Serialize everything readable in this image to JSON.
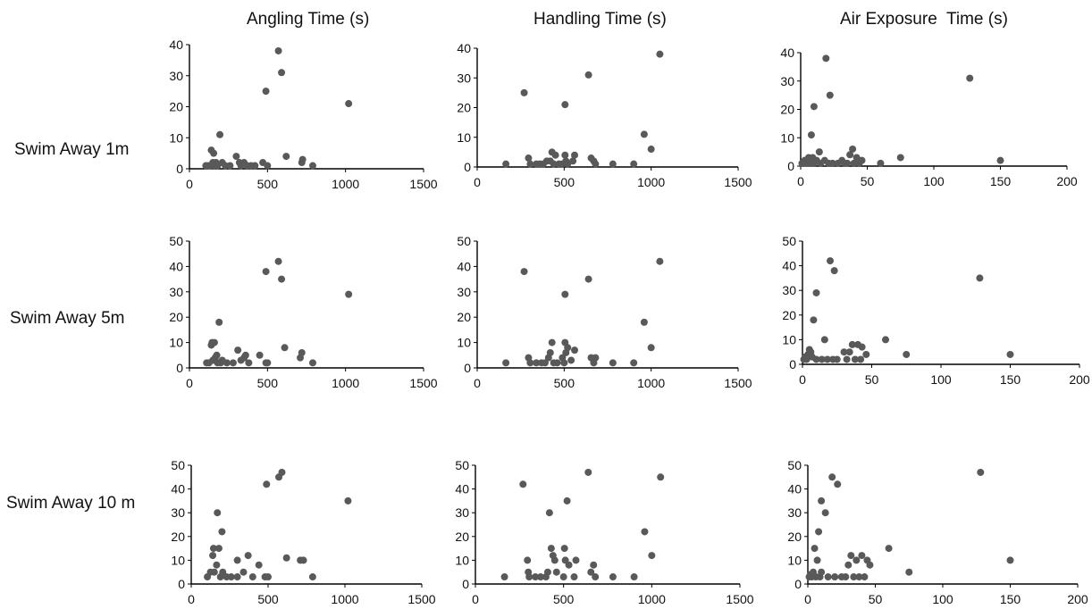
{
  "column_titles": [
    "Angling Time (s)",
    "Handling Time (s)",
    "Air Exposure  Time (s)"
  ],
  "row_labels": [
    "Swim Away 1m",
    "Swim Away 5m",
    "Swim Away 10 m"
  ],
  "chart_data": [
    {
      "type": "scatter",
      "title": "Angling Time (s)",
      "row": "Swim Away 1m",
      "xlim": [
        0,
        1500
      ],
      "ylim": [
        0,
        40
      ],
      "xticks": [
        0,
        500,
        1000,
        1500
      ],
      "yticks": [
        0,
        10,
        20,
        30,
        40
      ],
      "marker_color": "#595959",
      "points": [
        [
          105,
          1
        ],
        [
          120,
          1
        ],
        [
          135,
          1
        ],
        [
          140,
          6
        ],
        [
          150,
          2
        ],
        [
          155,
          5
        ],
        [
          160,
          1
        ],
        [
          170,
          2
        ],
        [
          180,
          1
        ],
        [
          195,
          11
        ],
        [
          210,
          2
        ],
        [
          230,
          1
        ],
        [
          260,
          1
        ],
        [
          300,
          4
        ],
        [
          320,
          2
        ],
        [
          330,
          1
        ],
        [
          350,
          2
        ],
        [
          370,
          1
        ],
        [
          395,
          1
        ],
        [
          420,
          1
        ],
        [
          470,
          2
        ],
        [
          500,
          1
        ],
        [
          490,
          25
        ],
        [
          570,
          38
        ],
        [
          590,
          31
        ],
        [
          620,
          4
        ],
        [
          720,
          2
        ],
        [
          725,
          3
        ],
        [
          790,
          1
        ],
        [
          1020,
          21
        ]
      ]
    },
    {
      "type": "scatter",
      "title": "Handling Time (s)",
      "row": "Swim Away 1m",
      "xlim": [
        0,
        1500
      ],
      "ylim": [
        0,
        40
      ],
      "xticks": [
        0,
        500,
        1000,
        1500
      ],
      "yticks": [
        0,
        10,
        20,
        30,
        40
      ],
      "marker_color": "#595959",
      "points": [
        [
          165,
          1
        ],
        [
          270,
          25
        ],
        [
          295,
          3
        ],
        [
          305,
          1
        ],
        [
          340,
          1
        ],
        [
          360,
          1
        ],
        [
          380,
          1
        ],
        [
          400,
          2
        ],
        [
          420,
          2
        ],
        [
          430,
          5
        ],
        [
          440,
          1
        ],
        [
          450,
          4
        ],
        [
          470,
          1
        ],
        [
          490,
          1
        ],
        [
          505,
          4
        ],
        [
          510,
          2
        ],
        [
          520,
          1
        ],
        [
          550,
          2
        ],
        [
          560,
          4
        ],
        [
          505,
          21
        ],
        [
          640,
          31
        ],
        [
          655,
          3
        ],
        [
          670,
          2
        ],
        [
          680,
          1
        ],
        [
          780,
          1
        ],
        [
          900,
          1
        ],
        [
          960,
          11
        ],
        [
          1000,
          6
        ],
        [
          1050,
          38
        ]
      ]
    },
    {
      "type": "scatter",
      "title": "Air Exposure  Time (s)",
      "row": "Swim Away 1m",
      "xlim": [
        0,
        200
      ],
      "ylim": [
        0,
        40
      ],
      "xticks": [
        0,
        50,
        100,
        150,
        200
      ],
      "yticks": [
        0,
        10,
        20,
        30,
        40
      ],
      "marker_color": "#595959",
      "points": [
        [
          1,
          1
        ],
        [
          2,
          1
        ],
        [
          3,
          2
        ],
        [
          4,
          1
        ],
        [
          5,
          2
        ],
        [
          6,
          3
        ],
        [
          7,
          1
        ],
        [
          8,
          11
        ],
        [
          9,
          3
        ],
        [
          10,
          21
        ],
        [
          10,
          1
        ],
        [
          12,
          2
        ],
        [
          14,
          5
        ],
        [
          15,
          1
        ],
        [
          18,
          2
        ],
        [
          19,
          38
        ],
        [
          21,
          1
        ],
        [
          22,
          25
        ],
        [
          24,
          1
        ],
        [
          28,
          1
        ],
        [
          31,
          2
        ],
        [
          33,
          1
        ],
        [
          35,
          1
        ],
        [
          37,
          4
        ],
        [
          39,
          6
        ],
        [
          40,
          1
        ],
        [
          42,
          3
        ],
        [
          44,
          1
        ],
        [
          46,
          2
        ],
        [
          60,
          1
        ],
        [
          75,
          3
        ],
        [
          127,
          31
        ],
        [
          150,
          2
        ]
      ]
    },
    {
      "type": "scatter",
      "title": "Angling Time (s)",
      "row": "Swim Away 5m",
      "xlim": [
        0,
        1500
      ],
      "ylim": [
        0,
        50
      ],
      "xticks": [
        0,
        500,
        1000,
        1500
      ],
      "yticks": [
        0,
        10,
        20,
        30,
        40,
        50
      ],
      "marker_color": "#595959",
      "points": [
        [
          110,
          2
        ],
        [
          125,
          2
        ],
        [
          140,
          9
        ],
        [
          145,
          10
        ],
        [
          150,
          3
        ],
        [
          160,
          10
        ],
        [
          165,
          4
        ],
        [
          175,
          5
        ],
        [
          180,
          2
        ],
        [
          190,
          18
        ],
        [
          200,
          2
        ],
        [
          210,
          3
        ],
        [
          240,
          2
        ],
        [
          280,
          2
        ],
        [
          310,
          7
        ],
        [
          330,
          3
        ],
        [
          350,
          4
        ],
        [
          360,
          5
        ],
        [
          380,
          2
        ],
        [
          450,
          5
        ],
        [
          490,
          2
        ],
        [
          500,
          2
        ],
        [
          490,
          38
        ],
        [
          570,
          42
        ],
        [
          590,
          35
        ],
        [
          610,
          8
        ],
        [
          710,
          4
        ],
        [
          720,
          6
        ],
        [
          790,
          2
        ],
        [
          1020,
          29
        ]
      ]
    },
    {
      "type": "scatter",
      "title": "Handling Time (s)",
      "row": "Swim Away 5m",
      "xlim": [
        0,
        1500
      ],
      "ylim": [
        0,
        50
      ],
      "xticks": [
        0,
        500,
        1000,
        1500
      ],
      "yticks": [
        0,
        10,
        20,
        30,
        40,
        50
      ],
      "marker_color": "#595959",
      "points": [
        [
          165,
          2
        ],
        [
          270,
          38
        ],
        [
          295,
          4
        ],
        [
          305,
          2
        ],
        [
          340,
          2
        ],
        [
          370,
          2
        ],
        [
          390,
          2
        ],
        [
          410,
          4
        ],
        [
          420,
          6
        ],
        [
          430,
          10
        ],
        [
          440,
          2
        ],
        [
          460,
          2
        ],
        [
          490,
          4
        ],
        [
          500,
          2
        ],
        [
          505,
          10
        ],
        [
          510,
          6
        ],
        [
          520,
          8
        ],
        [
          540,
          3
        ],
        [
          560,
          7
        ],
        [
          505,
          29
        ],
        [
          640,
          35
        ],
        [
          655,
          4
        ],
        [
          670,
          2
        ],
        [
          680,
          4
        ],
        [
          780,
          2
        ],
        [
          900,
          2
        ],
        [
          960,
          18
        ],
        [
          1000,
          8
        ],
        [
          1050,
          42
        ]
      ]
    },
    {
      "type": "scatter",
      "title": "Air Exposure  Time (s)",
      "row": "Swim Away 5m",
      "xlim": [
        0,
        200
      ],
      "ylim": [
        0,
        50
      ],
      "xticks": [
        0,
        50,
        100,
        150,
        200
      ],
      "yticks": [
        0,
        10,
        20,
        30,
        40,
        50
      ],
      "marker_color": "#595959",
      "points": [
        [
          1,
          2
        ],
        [
          2,
          3
        ],
        [
          3,
          2
        ],
        [
          4,
          4
        ],
        [
          5,
          6
        ],
        [
          6,
          5
        ],
        [
          7,
          3
        ],
        [
          8,
          18
        ],
        [
          10,
          29
        ],
        [
          10,
          2
        ],
        [
          14,
          2
        ],
        [
          16,
          10
        ],
        [
          18,
          2
        ],
        [
          20,
          42
        ],
        [
          22,
          2
        ],
        [
          23,
          38
        ],
        [
          25,
          2
        ],
        [
          30,
          5
        ],
        [
          32,
          2
        ],
        [
          34,
          5
        ],
        [
          36,
          8
        ],
        [
          38,
          2
        ],
        [
          40,
          8
        ],
        [
          42,
          2
        ],
        [
          43,
          7
        ],
        [
          46,
          4
        ],
        [
          60,
          10
        ],
        [
          75,
          4
        ],
        [
          128,
          35
        ],
        [
          150,
          4
        ]
      ]
    },
    {
      "type": "scatter",
      "title": "Angling Time (s)",
      "row": "Swim Away 10 m",
      "xlim": [
        0,
        1500
      ],
      "ylim": [
        0,
        50
      ],
      "xticks": [
        0,
        500,
        1000,
        1500
      ],
      "yticks": [
        0,
        10,
        20,
        30,
        40,
        50
      ],
      "marker_color": "#595959",
      "points": [
        [
          105,
          3
        ],
        [
          125,
          5
        ],
        [
          140,
          12
        ],
        [
          145,
          15
        ],
        [
          150,
          5
        ],
        [
          165,
          8
        ],
        [
          170,
          30
        ],
        [
          180,
          15
        ],
        [
          190,
          3
        ],
        [
          200,
          22
        ],
        [
          205,
          5
        ],
        [
          230,
          3
        ],
        [
          260,
          3
        ],
        [
          300,
          3
        ],
        [
          300,
          10
        ],
        [
          340,
          5
        ],
        [
          370,
          12
        ],
        [
          400,
          3
        ],
        [
          440,
          8
        ],
        [
          480,
          3
        ],
        [
          490,
          42
        ],
        [
          500,
          3
        ],
        [
          570,
          45
        ],
        [
          590,
          47
        ],
        [
          620,
          11
        ],
        [
          710,
          10
        ],
        [
          730,
          10
        ],
        [
          790,
          3
        ],
        [
          1020,
          35
        ]
      ]
    },
    {
      "type": "scatter",
      "title": "Handling Time (s)",
      "row": "Swim Away 10 m",
      "xlim": [
        0,
        1500
      ],
      "ylim": [
        0,
        50
      ],
      "xticks": [
        0,
        500,
        1000,
        1500
      ],
      "yticks": [
        0,
        10,
        20,
        30,
        40,
        50
      ],
      "marker_color": "#595959",
      "points": [
        [
          165,
          3
        ],
        [
          270,
          42
        ],
        [
          295,
          10
        ],
        [
          300,
          5
        ],
        [
          305,
          3
        ],
        [
          340,
          3
        ],
        [
          370,
          3
        ],
        [
          400,
          3
        ],
        [
          410,
          5
        ],
        [
          420,
          30
        ],
        [
          430,
          15
        ],
        [
          440,
          12
        ],
        [
          450,
          10
        ],
        [
          460,
          5
        ],
        [
          500,
          3
        ],
        [
          505,
          15
        ],
        [
          510,
          10
        ],
        [
          520,
          35
        ],
        [
          530,
          8
        ],
        [
          560,
          3
        ],
        [
          570,
          10
        ],
        [
          640,
          47
        ],
        [
          655,
          5
        ],
        [
          670,
          8
        ],
        [
          680,
          3
        ],
        [
          780,
          3
        ],
        [
          900,
          3
        ],
        [
          960,
          22
        ],
        [
          1000,
          12
        ],
        [
          1050,
          45
        ]
      ]
    },
    {
      "type": "scatter",
      "title": "Air Exposure  Time (s)",
      "row": "Swim Away 10 m",
      "xlim": [
        0,
        200
      ],
      "ylim": [
        0,
        50
      ],
      "xticks": [
        0,
        50,
        100,
        150,
        200
      ],
      "yticks": [
        0,
        10,
        20,
        30,
        40,
        50
      ],
      "marker_color": "#595959",
      "points": [
        [
          1,
          3
        ],
        [
          2,
          4
        ],
        [
          3,
          3
        ],
        [
          4,
          5
        ],
        [
          5,
          15
        ],
        [
          6,
          3
        ],
        [
          7,
          10
        ],
        [
          8,
          22
        ],
        [
          9,
          3
        ],
        [
          10,
          35
        ],
        [
          10,
          5
        ],
        [
          13,
          30
        ],
        [
          15,
          3
        ],
        [
          18,
          45
        ],
        [
          20,
          3
        ],
        [
          22,
          42
        ],
        [
          25,
          3
        ],
        [
          28,
          3
        ],
        [
          30,
          8
        ],
        [
          32,
          12
        ],
        [
          34,
          3
        ],
        [
          36,
          10
        ],
        [
          38,
          3
        ],
        [
          40,
          12
        ],
        [
          42,
          3
        ],
        [
          44,
          10
        ],
        [
          46,
          8
        ],
        [
          60,
          15
        ],
        [
          75,
          5
        ],
        [
          128,
          47
        ],
        [
          150,
          10
        ]
      ]
    }
  ]
}
